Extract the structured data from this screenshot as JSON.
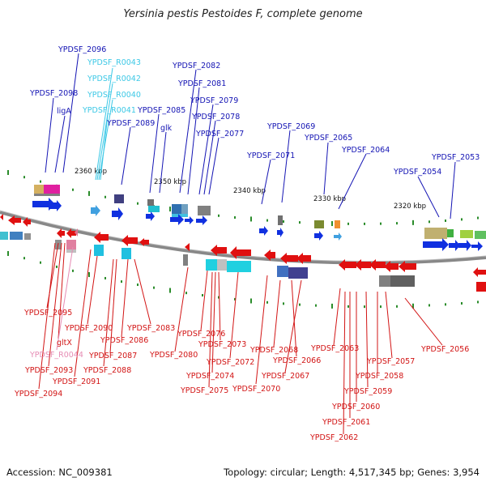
{
  "title": "Yersinia pestis Pestoides F, complete genome",
  "footer": {
    "accession": "Accession: NC_009381",
    "info": "Topology: circular; Length: 4,517,345 bp; Genes: 3,954"
  },
  "colors": {
    "forward_label": "#1414b4",
    "reverse_label": "#d21414",
    "rna_label": "#3cc8e6",
    "pseudo_label": "#e68cb4",
    "backbone": "#8c8c8c",
    "tick": "#2a8c2a"
  },
  "scale_labels": [
    "2360 kbp",
    "2350 kbp",
    "2340 kbp",
    "2330 kbp",
    "2320 kbp"
  ],
  "forward_genes": [
    {
      "label": "YPDSF_2096",
      "type": "gene"
    },
    {
      "label": "YPDSF_R0043",
      "type": "rna"
    },
    {
      "label": "YPDSF_R0042",
      "type": "rna"
    },
    {
      "label": "YPDSF_R0040",
      "type": "rna"
    },
    {
      "label": "YPDSF_R0041",
      "type": "rna"
    },
    {
      "label": "YPDSF_2098",
      "type": "gene"
    },
    {
      "label": "ligA",
      "type": "gene"
    },
    {
      "label": "YPDSF_2089",
      "type": "gene"
    },
    {
      "label": "YPDSF_2085",
      "type": "gene"
    },
    {
      "label": "glk",
      "type": "gene"
    },
    {
      "label": "YPDSF_2082",
      "type": "gene"
    },
    {
      "label": "YPDSF_2081",
      "type": "gene"
    },
    {
      "label": "YPDSF_2079",
      "type": "gene"
    },
    {
      "label": "YPDSF_2078",
      "type": "gene"
    },
    {
      "label": "YPDSF_2077",
      "type": "gene"
    },
    {
      "label": "YPDSF_2069",
      "type": "gene"
    },
    {
      "label": "YPDSF_2071",
      "type": "gene"
    },
    {
      "label": "YPDSF_2065",
      "type": "gene"
    },
    {
      "label": "YPDSF_2064",
      "type": "gene"
    },
    {
      "label": "YPDSF_2053",
      "type": "gene"
    },
    {
      "label": "YPDSF_2054",
      "type": "gene"
    }
  ],
  "reverse_genes": [
    {
      "label": "YPDSF_2095",
      "type": "gene"
    },
    {
      "label": "gltX",
      "type": "gene"
    },
    {
      "label": "YPDSF_R0044",
      "type": "pseudo"
    },
    {
      "label": "YPDSF_2093",
      "type": "gene"
    },
    {
      "label": "YPDSF_2094",
      "type": "gene"
    },
    {
      "label": "YPDSF_2091",
      "type": "gene"
    },
    {
      "label": "YPDSF_2090",
      "type": "gene"
    },
    {
      "label": "YPDSF_2087",
      "type": "gene"
    },
    {
      "label": "YPDSF_2088",
      "type": "gene"
    },
    {
      "label": "YPDSF_2086",
      "type": "gene"
    },
    {
      "label": "YPDSF_2083",
      "type": "gene"
    },
    {
      "label": "YPDSF_2080",
      "type": "gene"
    },
    {
      "label": "YPDSF_2076",
      "type": "gene"
    },
    {
      "label": "YPDSF_2073",
      "type": "gene"
    },
    {
      "label": "YPDSF_2072",
      "type": "gene"
    },
    {
      "label": "YPDSF_2074",
      "type": "gene"
    },
    {
      "label": "YPDSF_2075",
      "type": "gene"
    },
    {
      "label": "YPDSF_2070",
      "type": "gene"
    },
    {
      "label": "YPDSF_2068",
      "type": "gene"
    },
    {
      "label": "YPDSF_2066",
      "type": "gene"
    },
    {
      "label": "YPDSF_2067",
      "type": "gene"
    },
    {
      "label": "YPDSF_2063",
      "type": "gene"
    },
    {
      "label": "YPDSF_2057",
      "type": "gene"
    },
    {
      "label": "YPDSF_2056",
      "type": "gene"
    },
    {
      "label": "YPDSF_2058",
      "type": "gene"
    },
    {
      "label": "YPDSF_2059",
      "type": "gene"
    },
    {
      "label": "YPDSF_2060",
      "type": "gene"
    },
    {
      "label": "YPDSF_2061",
      "type": "gene"
    },
    {
      "label": "YPDSF_2062",
      "type": "gene"
    }
  ]
}
